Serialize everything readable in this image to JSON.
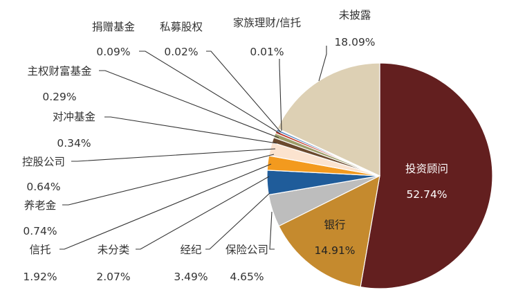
{
  "chart_data": {
    "type": "pie",
    "title": "",
    "slices": [
      {
        "name": "投资顾问",
        "value": 52.74,
        "label": "52.74%",
        "color": "#631F1F",
        "text_color": "#ffffff"
      },
      {
        "name": "银行",
        "value": 14.91,
        "label": "14.91%",
        "color": "#C58A2E",
        "text_color": "#222222"
      },
      {
        "name": "保险公司",
        "value": 4.65,
        "label": "4.65%",
        "color": "#BDBDBD"
      },
      {
        "name": "经纪",
        "value": 3.49,
        "label": "3.49%",
        "color": "#1F5C9A"
      },
      {
        "name": "未分类",
        "value": 2.07,
        "label": "2.07%",
        "color": "#F39A1E"
      },
      {
        "name": "信托",
        "value": 1.92,
        "label": "1.92%",
        "color": "#FBE3CF"
      },
      {
        "name": "养老金",
        "value": 0.74,
        "label": "0.74%",
        "color": "#6B4A2E"
      },
      {
        "name": "控股公司",
        "value": 0.64,
        "label": "0.64%",
        "color": "#9E9E6A"
      },
      {
        "name": "对冲基金",
        "value": 0.34,
        "label": "0.34%",
        "color": "#C0392B"
      },
      {
        "name": "主权财富基金",
        "value": 0.29,
        "label": "0.29%",
        "color": "#4F81BD"
      },
      {
        "name": "捐赠基金",
        "value": 0.09,
        "label": "0.09%",
        "color": "#9BBB59"
      },
      {
        "name": "私募股权",
        "value": 0.02,
        "label": "0.02%",
        "color": "#8064A2"
      },
      {
        "name": "家族理财/信托",
        "value": 0.01,
        "label": "0.01%",
        "color": "#4BACC6"
      },
      {
        "name": "未披露",
        "value": 18.09,
        "label": "18.09%",
        "color": "#DDD0B4"
      }
    ]
  }
}
